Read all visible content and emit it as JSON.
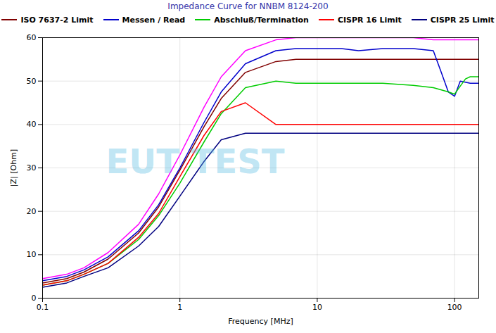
{
  "chart_data": {
    "type": "line",
    "title": "Impedance Curve for NNBM 8124-200",
    "xlabel": "Frequency [MHz]",
    "ylabel": "|Z| [Ohm]",
    "log": "x",
    "xlim": [
      0.1,
      150
    ],
    "ylim": [
      0,
      60
    ],
    "xticks": [
      0.1,
      1,
      10,
      100
    ],
    "yticks": [
      0,
      10,
      20,
      30,
      40,
      50,
      60
    ],
    "grid": true,
    "legend": "top",
    "annotations": [
      "EUT TEST"
    ],
    "series": [
      {
        "color": "#ff00ff",
        "x": [
          0.1,
          0.15,
          0.2,
          0.3,
          0.5,
          0.7,
          1.0,
          1.5,
          2.0,
          3.0,
          5.0,
          7.0,
          10,
          15,
          20,
          30,
          50,
          70,
          100,
          130,
          150
        ],
        "values": [
          4.5,
          5.5,
          7.0,
          10.5,
          17.0,
          24.0,
          33.0,
          44.0,
          51.0,
          57.0,
          59.5,
          60.0,
          60.0,
          60.0,
          60.0,
          60.0,
          60.0,
          59.5,
          59.5,
          59.5,
          59.5
        ]
      },
      {
        "name": "ISO 7637-2 Limit",
        "color": "#800000",
        "x": [
          0.1,
          0.15,
          0.2,
          0.3,
          0.5,
          0.7,
          1.0,
          1.5,
          2.0,
          3.0,
          5.0,
          7.0,
          10,
          15,
          20,
          30,
          50,
          70,
          100,
          130,
          150
        ],
        "values": [
          3.5,
          4.5,
          6.0,
          9.0,
          15.0,
          21.0,
          29.5,
          39.5,
          46.0,
          52.0,
          54.5,
          55.0,
          55.0,
          55.0,
          55.0,
          55.0,
          55.0,
          55.0,
          55.0,
          55.0,
          55.0
        ]
      },
      {
        "name": "Messen / Read",
        "color": "#0000cc",
        "x": [
          0.1,
          0.15,
          0.2,
          0.3,
          0.5,
          0.7,
          1.0,
          1.5,
          2.0,
          3.0,
          5.0,
          7.0,
          10,
          15,
          20,
          30,
          50,
          70,
          80,
          90,
          100,
          110,
          130,
          150
        ],
        "values": [
          4.0,
          5.0,
          6.5,
          9.5,
          15.5,
          21.5,
          30.0,
          40.5,
          47.5,
          54.0,
          57.0,
          57.5,
          57.5,
          57.5,
          57.0,
          57.5,
          57.5,
          57.0,
          52.0,
          47.5,
          46.5,
          50.0,
          49.5,
          49.5
        ]
      },
      {
        "name": "Abschluß/Termination",
        "color": "#00cc00",
        "x": [
          0.1,
          0.15,
          0.2,
          0.3,
          0.5,
          0.7,
          1.0,
          1.5,
          2.0,
          3.0,
          5.0,
          7.0,
          10,
          15,
          20,
          30,
          50,
          70,
          90,
          100,
          120,
          130,
          150
        ],
        "values": [
          3.0,
          4.0,
          5.5,
          8.0,
          13.5,
          19.0,
          26.5,
          36.0,
          42.5,
          48.5,
          50.0,
          49.5,
          49.5,
          49.5,
          49.5,
          49.5,
          49.0,
          48.5,
          47.5,
          47.0,
          50.5,
          51.0,
          51.0
        ]
      },
      {
        "name": "CISPR 16 Limit",
        "color": "#ff0000",
        "x": [
          0.1,
          0.15,
          0.2,
          0.3,
          0.5,
          0.7,
          1.0,
          1.5,
          2.0,
          3.0,
          5.0,
          7.0,
          10,
          15,
          20,
          30,
          50,
          70,
          100,
          130,
          150
        ],
        "values": [
          3.0,
          4.0,
          5.5,
          8.0,
          14.0,
          19.5,
          28.0,
          37.5,
          43.0,
          45.0,
          40.0,
          40.0,
          40.0,
          40.0,
          40.0,
          40.0,
          40.0,
          40.0,
          40.0,
          40.0,
          40.0
        ]
      },
      {
        "name": "CISPR 25 Limit",
        "color": "#000080",
        "x": [
          0.1,
          0.15,
          0.2,
          0.3,
          0.5,
          0.7,
          1.0,
          1.5,
          2.0,
          3.0,
          5.0,
          7.0,
          10,
          15,
          20,
          30,
          50,
          70,
          100,
          130,
          150
        ],
        "values": [
          2.5,
          3.5,
          5.0,
          7.0,
          12.0,
          16.5,
          23.5,
          31.5,
          36.5,
          38.0,
          38.0,
          38.0,
          38.0,
          38.0,
          38.0,
          38.0,
          38.0,
          38.0,
          38.0,
          38.0,
          38.0
        ]
      }
    ]
  }
}
